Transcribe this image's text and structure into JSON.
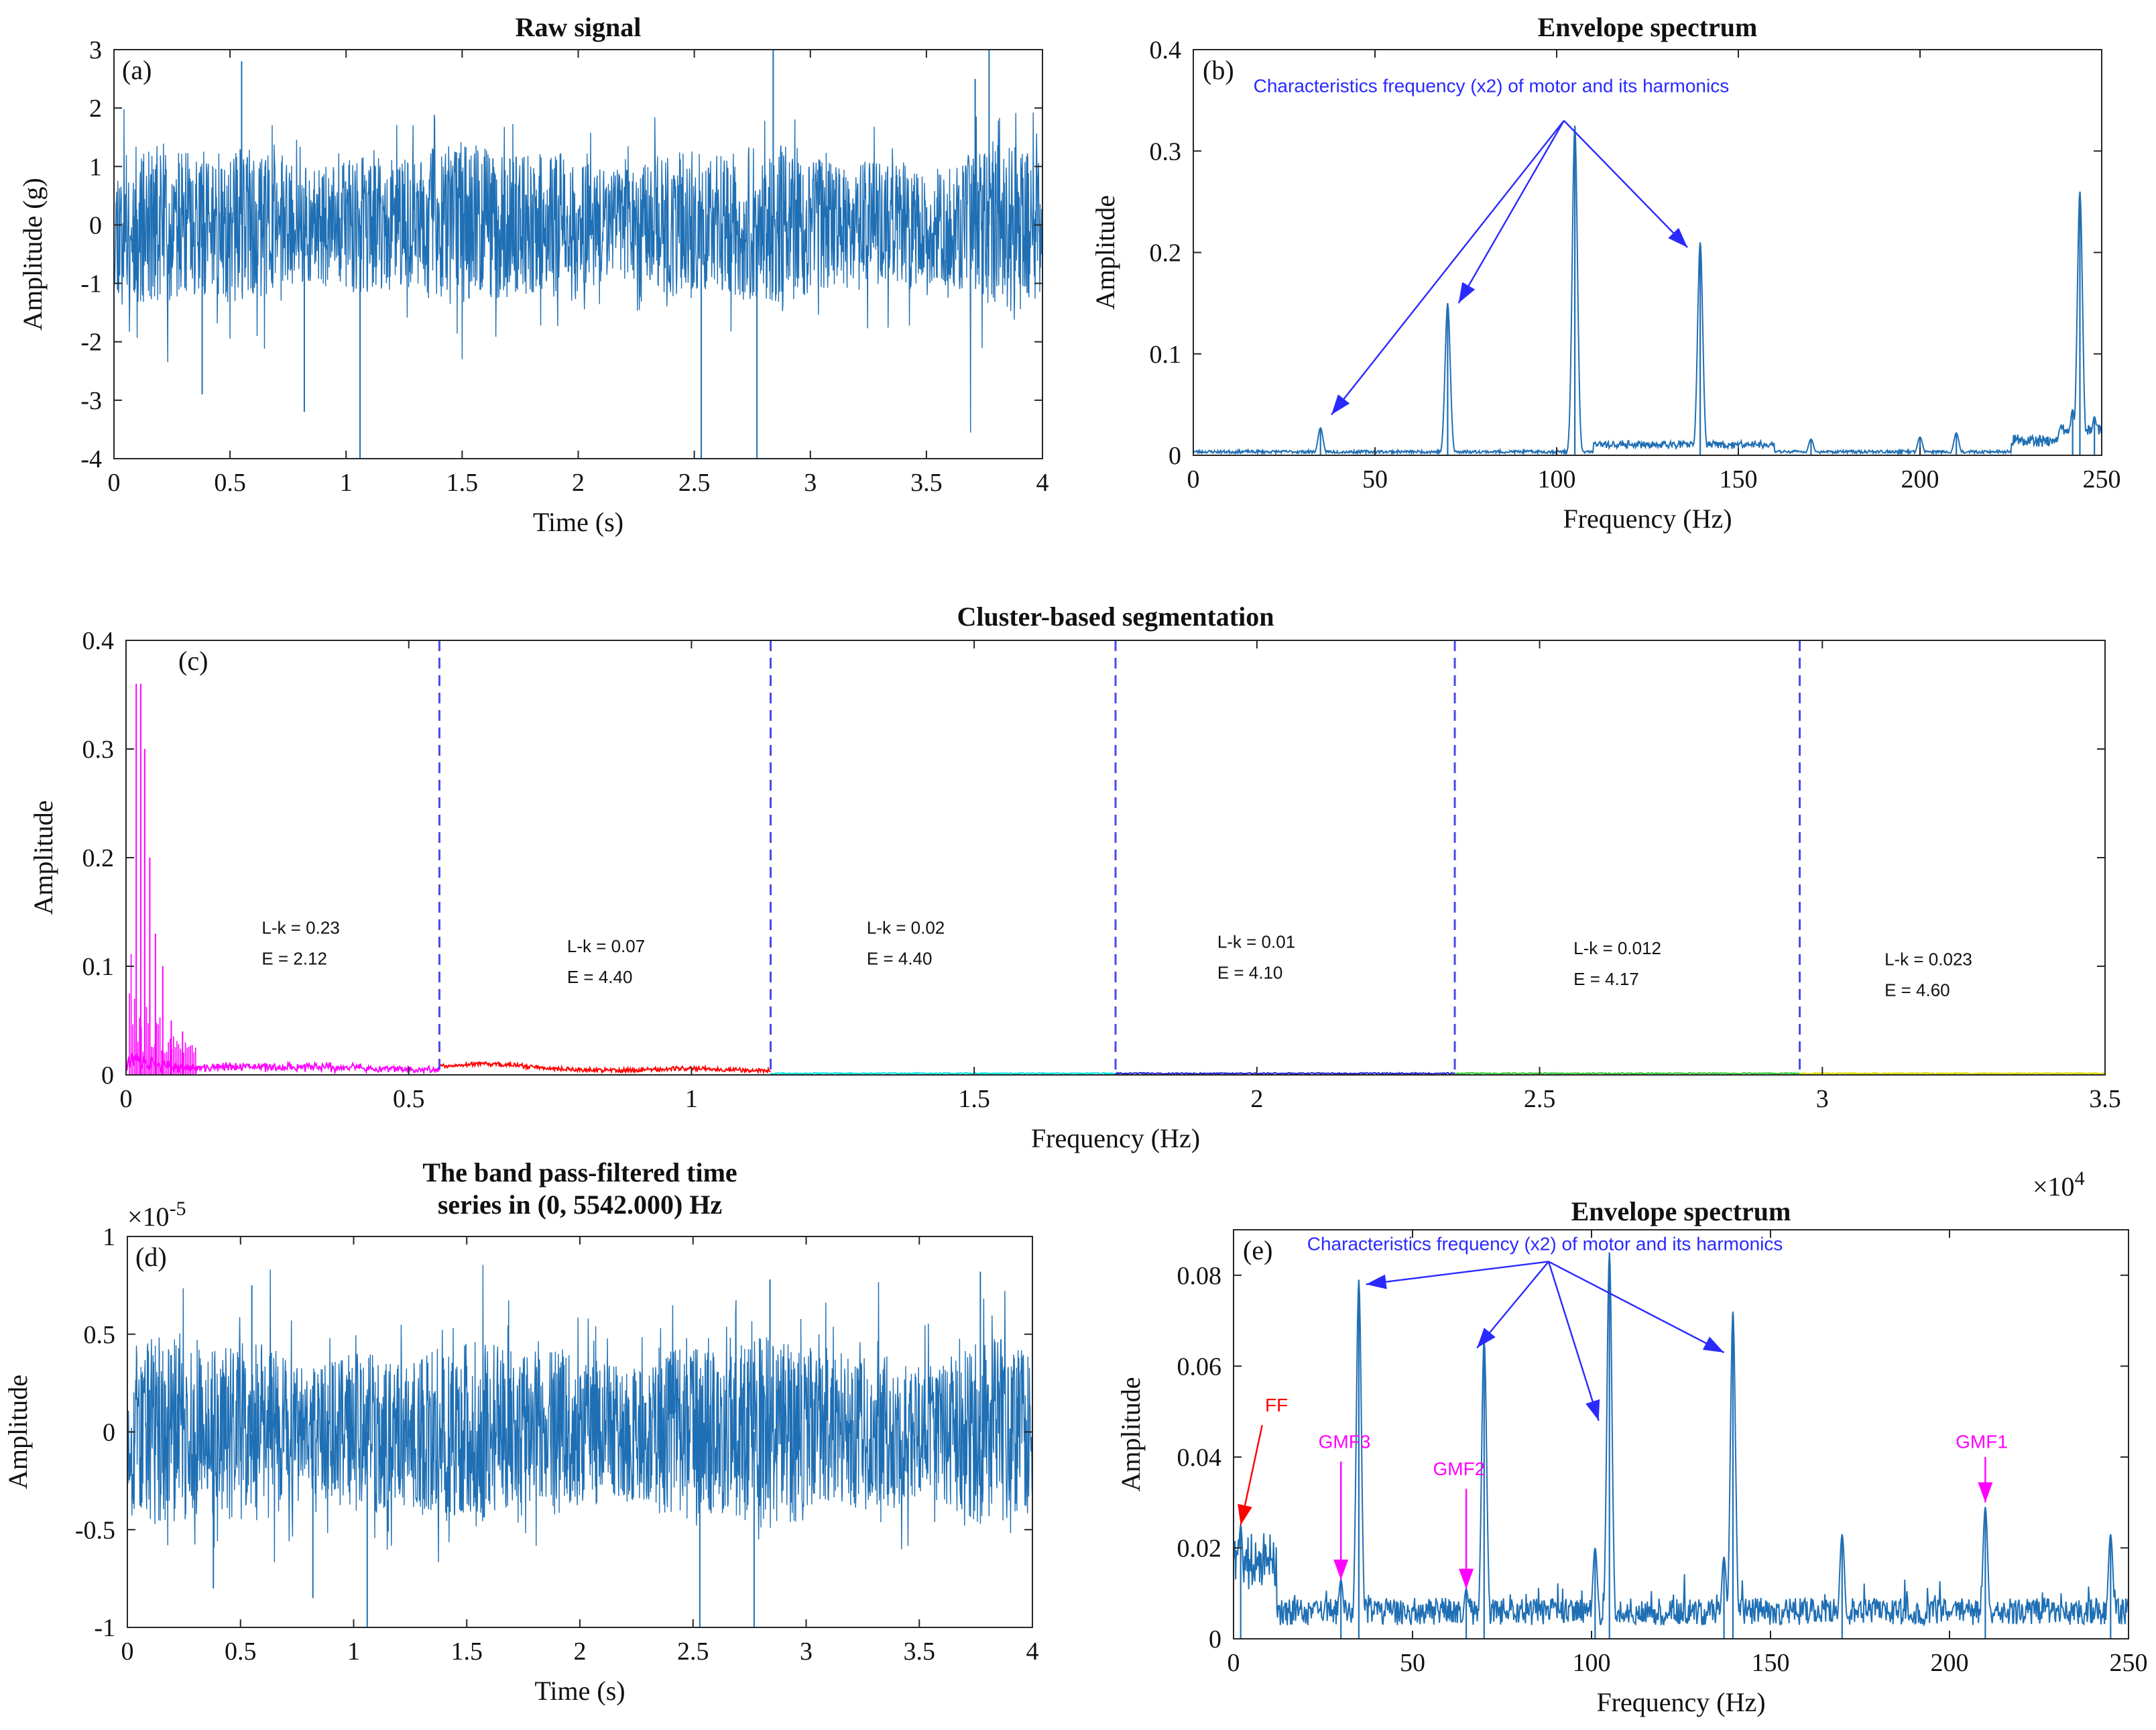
{
  "chart_data": [
    {
      "id": "a",
      "type": "line",
      "panel_label": "(a)",
      "title": "Raw signal",
      "xlabel": "Time (s)",
      "ylabel": "Amplitude (g)",
      "xlim": [
        0,
        4
      ],
      "ylim": [
        -4,
        3
      ],
      "xticks": [
        0,
        0.5,
        1,
        1.5,
        2,
        2.5,
        3,
        3.5,
        4
      ],
      "yticks": [
        -4,
        -3,
        -2,
        -1,
        0,
        1,
        2,
        3
      ],
      "xtick_labels": [
        "0",
        "0.5",
        "1",
        "1.5",
        "2",
        "2.5",
        "3",
        "3.5",
        "4"
      ],
      "ytick_labels": [
        "-4",
        "-3",
        "-2",
        "-1",
        "0",
        "1",
        "2",
        "3"
      ],
      "color": "#1f6fb4",
      "signal": {
        "kind": "noise",
        "typical_band": [
          -1.2,
          1.2
        ],
        "spikes": [
          [
            0.82,
            -3.2
          ],
          [
            1.06,
            -4.0
          ],
          [
            2.53,
            -4.0
          ],
          [
            2.77,
            -4.0
          ],
          [
            2.84,
            3.0
          ],
          [
            3.77,
            3.0
          ],
          [
            3.71,
            2.5
          ],
          [
            0.55,
            2.8
          ],
          [
            0.38,
            -2.9
          ]
        ]
      }
    },
    {
      "id": "b",
      "type": "line",
      "panel_label": "(b)",
      "title": "Envelope spectrum",
      "xlabel": "Frequency (Hz)",
      "ylabel": "Amplitude",
      "xlim": [
        0,
        250
      ],
      "ylim": [
        0,
        0.4
      ],
      "xticks": [
        0,
        50,
        100,
        150,
        200,
        250
      ],
      "yticks": [
        0,
        0.1,
        0.2,
        0.3,
        0.4
      ],
      "xtick_labels": [
        "0",
        "50",
        "100",
        "150",
        "200",
        "250"
      ],
      "ytick_labels": [
        "0",
        "0.1",
        "0.2",
        "0.3",
        "0.4"
      ],
      "color": "#1f6fb4",
      "peaks": [
        [
          35,
          0.027
        ],
        [
          70,
          0.15
        ],
        [
          105,
          0.325
        ],
        [
          139.5,
          0.21
        ],
        [
          170,
          0.016
        ],
        [
          200,
          0.018
        ],
        [
          210,
          0.022
        ],
        [
          244,
          0.26
        ],
        [
          242,
          0.045
        ],
        [
          248,
          0.038
        ]
      ],
      "annotation": {
        "text": "Characteristics frequency (x2) of motor and its harmonics",
        "color": "#2a2aff",
        "origin": [
          102,
          0.33
        ],
        "targets": [
          [
            38,
            0.04
          ],
          [
            73,
            0.15
          ],
          [
            136,
            0.205
          ]
        ]
      }
    },
    {
      "id": "c",
      "type": "line",
      "panel_label": "(c)",
      "title": "Cluster-based segmentation",
      "xlabel": "Frequency (Hz)",
      "ylabel": "Amplitude",
      "xlim": [
        0,
        35000
      ],
      "ylim": [
        0,
        0.4
      ],
      "xticks": [
        0,
        5000,
        10000,
        15000,
        20000,
        25000,
        30000,
        35000
      ],
      "yticks": [
        0,
        0.1,
        0.2,
        0.3,
        0.4
      ],
      "xtick_labels": [
        "0",
        "0.5",
        "1",
        "1.5",
        "2",
        "2.5",
        "3",
        "3.5"
      ],
      "ytick_labels": [
        "0",
        "0.1",
        "0.2",
        "0.3",
        "0.4"
      ],
      "exponent": "×10",
      "exponent_power": "4",
      "boundaries": [
        5542,
        11400,
        17500,
        23500,
        29600
      ],
      "boundary_color": "#4a4ae8",
      "segments": [
        {
          "range": [
            0,
            5542
          ],
          "color": "#ff00ff",
          "lk": "L-k = 0.23",
          "e": "E = 2.12",
          "label_at": [
            2400,
            0.13
          ]
        },
        {
          "range": [
            5542,
            11400
          ],
          "color": "#ff0000",
          "lk": "L-k = 0.07",
          "e": "E = 4.40",
          "label_at": [
            7800,
            0.113
          ]
        },
        {
          "range": [
            11400,
            17500
          ],
          "color": "#00e5e5",
          "lk": "L-k = 0.02",
          "e": "E = 4.40",
          "label_at": [
            13100,
            0.13
          ]
        },
        {
          "range": [
            17500,
            23500
          ],
          "color": "#2020d0",
          "lk": "L-k = 0.01",
          "e": "E = 4.10",
          "label_at": [
            19300,
            0.117
          ]
        },
        {
          "range": [
            23500,
            29600
          ],
          "color": "#33cc33",
          "lk": "L-k = 0.012",
          "e": "E = 4.17",
          "label_at": [
            25600,
            0.111
          ]
        },
        {
          "range": [
            29600,
            35000
          ],
          "color": "#dddd00",
          "lk": "L-k = 0.023",
          "e": "E = 4.60",
          "label_at": [
            31100,
            0.101
          ]
        }
      ],
      "peaks": [
        [
          180,
          0.36
        ],
        [
          260,
          0.36
        ],
        [
          330,
          0.3
        ],
        [
          420,
          0.2
        ],
        [
          520,
          0.13
        ],
        [
          650,
          0.1
        ],
        [
          800,
          0.05
        ],
        [
          1000,
          0.04
        ]
      ]
    },
    {
      "id": "d",
      "type": "line",
      "panel_label": "(d)",
      "title": "The band pass-filtered time",
      "title_line2": "series in (0, 5542.000) Hz",
      "xlabel": "Time (s)",
      "ylabel": "Amplitude",
      "xlim": [
        0,
        4
      ],
      "ylim": [
        -1,
        1
      ],
      "xticks": [
        0,
        0.5,
        1,
        1.5,
        2,
        2.5,
        3,
        3.5,
        4
      ],
      "yticks": [
        -1,
        -0.5,
        0,
        0.5,
        1
      ],
      "xtick_labels": [
        "0",
        "0.5",
        "1",
        "1.5",
        "2",
        "2.5",
        "3",
        "3.5",
        "4"
      ],
      "ytick_labels": [
        "-1",
        "-0.5",
        "0",
        "0.5",
        "1"
      ],
      "exponent": "×10",
      "exponent_power": "-5",
      "color": "#1f6fb4",
      "signal": {
        "kind": "noise",
        "typical_band": [
          -0.42,
          0.42
        ],
        "spikes": [
          [
            1.06,
            -1.0
          ],
          [
            2.53,
            -1.0
          ],
          [
            2.77,
            -1.0
          ],
          [
            0.55,
            0.75
          ],
          [
            2.84,
            0.78
          ],
          [
            3.77,
            0.82
          ],
          [
            0.82,
            -0.85
          ],
          [
            0.38,
            -0.8
          ]
        ]
      }
    },
    {
      "id": "e",
      "type": "line",
      "panel_label": "(e)",
      "title": "Envelope spectrum",
      "xlabel": "Frequency (Hz)",
      "ylabel": "Amplitude",
      "xlim": [
        0,
        250
      ],
      "ylim": [
        0,
        0.09
      ],
      "xticks": [
        0,
        50,
        100,
        150,
        200,
        250
      ],
      "yticks": [
        0,
        0.02,
        0.04,
        0.06,
        0.08
      ],
      "xtick_labels": [
        "0",
        "50",
        "100",
        "150",
        "200",
        "250"
      ],
      "ytick_labels": [
        "0",
        "0.02",
        "0.04",
        "0.06",
        "0.08"
      ],
      "color": "#1f6fb4",
      "peaks": [
        [
          35,
          0.079
        ],
        [
          70,
          0.066
        ],
        [
          105,
          0.085
        ],
        [
          139.5,
          0.072
        ],
        [
          210,
          0.029
        ],
        [
          170,
          0.023
        ],
        [
          245,
          0.023
        ],
        [
          30,
          0.013
        ],
        [
          65,
          0.011
        ],
        [
          101,
          0.02
        ],
        [
          137,
          0.018
        ],
        [
          2,
          0.025
        ]
      ],
      "annotations": [
        {
          "text": "Characteristics frequency (x2) of motor and its harmonics",
          "color": "#2a2aff",
          "origin": [
            88,
            0.083
          ],
          "targets": [
            [
              37,
              0.078
            ],
            [
              68,
              0.064
            ],
            [
              102,
              0.048
            ],
            [
              137,
              0.063
            ]
          ]
        },
        {
          "text": "FF",
          "color": "#ff0000",
          "origin": [
            8,
            0.047
          ],
          "targets": [
            [
              2,
              0.025
            ]
          ],
          "label_at": [
            12,
            0.05
          ]
        },
        {
          "text": "GMF3",
          "color": "#ff00ff",
          "origin": [
            30,
            0.039
          ],
          "targets": [
            [
              30,
              0.013
            ]
          ],
          "label_at": [
            31,
            0.042
          ]
        },
        {
          "text": "GMF2",
          "color": "#ff00ff",
          "origin": [
            65,
            0.033
          ],
          "targets": [
            [
              65,
              0.011
            ]
          ],
          "label_at": [
            63,
            0.036
          ]
        },
        {
          "text": "GMF1",
          "color": "#ff00ff",
          "origin": [
            210,
            0.04
          ],
          "targets": [
            [
              210,
              0.03
            ]
          ],
          "label_at": [
            209,
            0.042
          ]
        }
      ]
    }
  ]
}
